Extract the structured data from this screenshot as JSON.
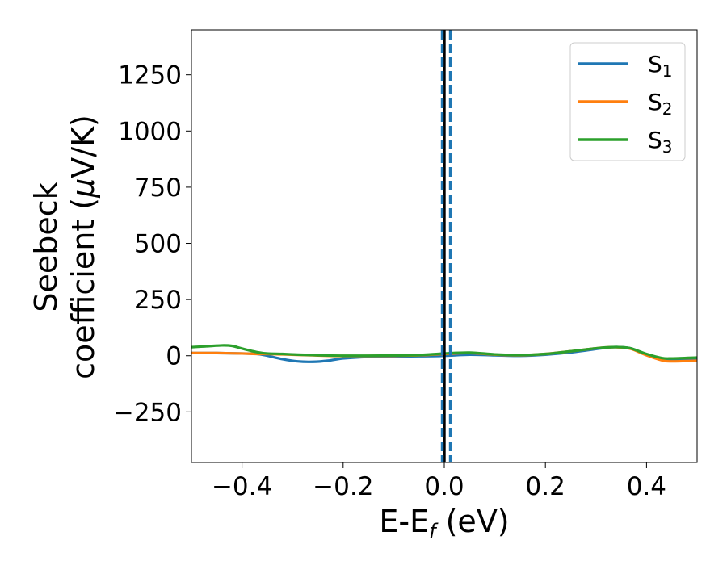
{
  "chart_data": {
    "type": "line",
    "xlabel_main": "E-E",
    "xlabel_sub": "f",
    "xlabel_unit": " (eV)",
    "ylabel_line1": "Seebeck",
    "ylabel_line2_pre": "coefficient  (",
    "ylabel_line2_mu": "μ",
    "ylabel_line2_post": "V/K)",
    "xlim": [
      -0.5,
      0.5
    ],
    "ylim": [
      -475,
      1450
    ],
    "x_ticks": [
      -0.4,
      -0.2,
      0.0,
      0.2,
      0.4
    ],
    "x_tick_labels": [
      "−0.4",
      "−0.2",
      "0.0",
      "0.2",
      "0.4"
    ],
    "y_ticks": [
      -250,
      0,
      250,
      500,
      750,
      1000,
      1250
    ],
    "y_tick_labels": [
      "−250",
      "0",
      "250",
      "500",
      "750",
      "1000",
      "1250"
    ],
    "legend_position": "top-right",
    "grid": false,
    "vlines": [
      {
        "x": 0.0,
        "style": "solid",
        "color": "#000000"
      },
      {
        "x": -0.004,
        "style": "dashed",
        "color": "#1f77b4"
      },
      {
        "x": 0.012,
        "style": "dashed",
        "color": "#1f77b4"
      }
    ],
    "series": [
      {
        "name": "S",
        "subscript": "1",
        "color": "#1f77b4",
        "x": [
          -0.5,
          -0.45,
          -0.4,
          -0.37,
          -0.35,
          -0.32,
          -0.29,
          -0.26,
          -0.23,
          -0.2,
          -0.15,
          -0.1,
          -0.05,
          0.0,
          0.05,
          0.1,
          0.15,
          0.2,
          0.25,
          0.3,
          0.33,
          0.35,
          0.37,
          0.4,
          0.43,
          0.45,
          0.5
        ],
        "y": [
          12,
          12,
          10,
          8,
          0,
          -15,
          -25,
          -27,
          -22,
          -12,
          -5,
          -3,
          -2,
          0,
          5,
          2,
          0,
          5,
          15,
          30,
          38,
          38,
          32,
          5,
          -18,
          -20,
          -18
        ]
      },
      {
        "name": "S",
        "subscript": "2",
        "color": "#ff7f0e",
        "x": [
          -0.5,
          -0.45,
          -0.4,
          -0.37,
          -0.35,
          -0.32,
          -0.29,
          -0.26,
          -0.23,
          -0.2,
          -0.15,
          -0.1,
          -0.05,
          0.0,
          0.05,
          0.1,
          0.15,
          0.2,
          0.25,
          0.3,
          0.33,
          0.35,
          0.37,
          0.4,
          0.43,
          0.45,
          0.5
        ],
        "y": [
          12,
          12,
          10,
          8,
          8,
          6,
          4,
          2,
          0,
          -1,
          -1,
          0,
          2,
          8,
          12,
          5,
          2,
          8,
          20,
          33,
          38,
          37,
          30,
          2,
          -20,
          -25,
          -22
        ]
      },
      {
        "name": "S",
        "subscript": "3",
        "color": "#2ca02c",
        "x": [
          -0.5,
          -0.47,
          -0.44,
          -0.42,
          -0.4,
          -0.37,
          -0.35,
          -0.32,
          -0.29,
          -0.26,
          -0.23,
          -0.2,
          -0.15,
          -0.1,
          -0.05,
          0.0,
          0.05,
          0.1,
          0.15,
          0.2,
          0.25,
          0.3,
          0.33,
          0.35,
          0.37,
          0.4,
          0.43,
          0.45,
          0.5
        ],
        "y": [
          38,
          42,
          46,
          44,
          32,
          16,
          10,
          8,
          5,
          3,
          1,
          0,
          0,
          1,
          3,
          10,
          14,
          6,
          3,
          8,
          20,
          33,
          38,
          38,
          32,
          8,
          -10,
          -12,
          -8
        ]
      }
    ]
  }
}
